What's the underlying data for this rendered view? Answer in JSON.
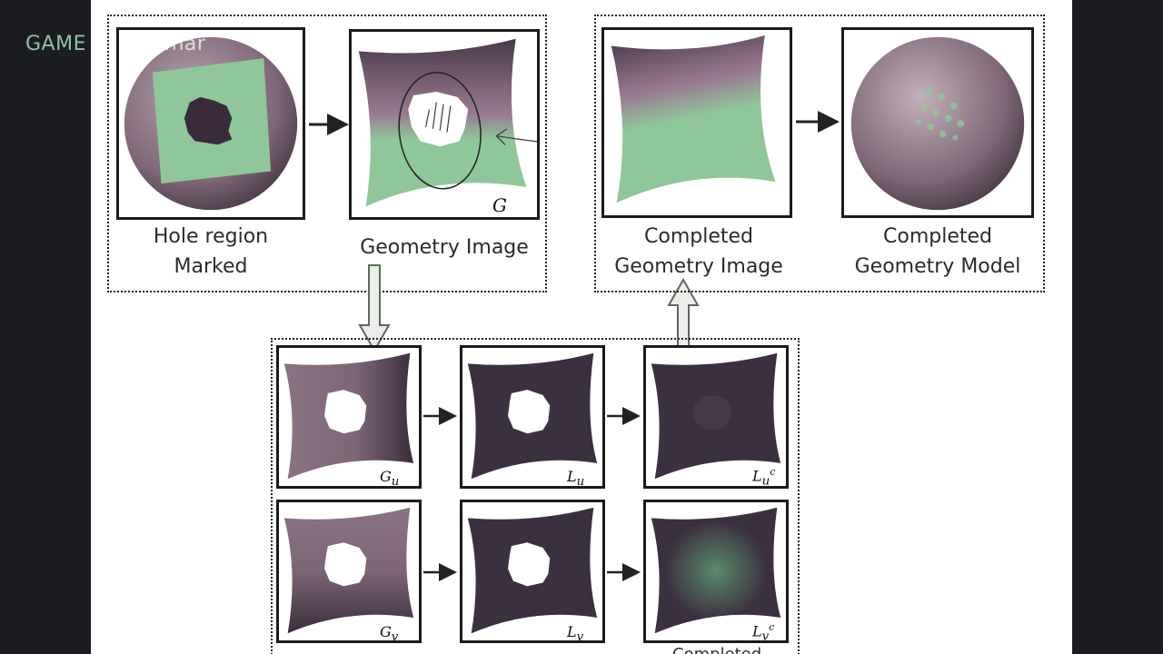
{
  "watermark": "GAME",
  "watermark_suffix": "mar",
  "top_left": {
    "hole_caption_line1": "Hole region",
    "hole_caption_line2": "Marked",
    "geometry_caption": "Geometry Image",
    "geometry_symbol": "G"
  },
  "top_right": {
    "completed_image_line1": "Completed",
    "completed_image_line2": "Geometry Image",
    "completed_model_line1": "Completed",
    "completed_model_line2": "Geometry Model"
  },
  "bottom": {
    "gu_base": "G",
    "gu_sub": "u",
    "lu_base": "L",
    "lu_sub": "u",
    "luc_base": "L",
    "luc_sub": "u",
    "luc_sup": "c",
    "gv_base": "G",
    "gv_sub": "v",
    "lv_base": "L",
    "lv_sub": "v",
    "lvc_base": "L",
    "lvc_sub": "v",
    "lvc_sup": "c",
    "cut_text": "Completed"
  },
  "colors": {
    "mauve": "#8a7383",
    "green": "#8fc79a",
    "dark": "#3b3040"
  }
}
